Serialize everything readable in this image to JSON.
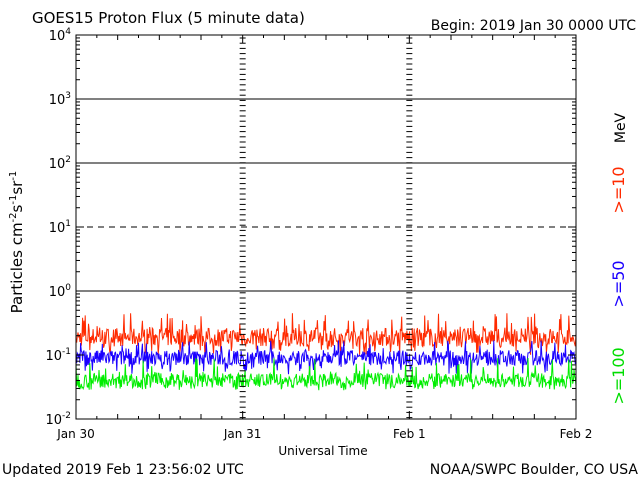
{
  "header": {
    "title": "GOES15 Proton Flux (5 minute data)",
    "begin": "Begin:  2019 Jan 30 0000 UTC"
  },
  "footer": {
    "updated": "Updated 2019 Feb  1 23:56:02 UTC",
    "credit": "NOAA/SWPC Boulder, CO USA"
  },
  "colors": {
    "ge10": "#ff2a00",
    "ge50": "#1a00ff",
    "ge100": "#00ee00",
    "axis": "#000000"
  },
  "chart_data": {
    "type": "line",
    "title": "GOES15 Proton Flux (5 minute data)",
    "xlabel": "Universal Time",
    "ylabel_parts": [
      "Particles cm",
      "-2",
      "s",
      "-1",
      "sr",
      "-1"
    ],
    "xlim": [
      "2019-01-30 00:00",
      "2019-02-02 00:00"
    ],
    "x_ticks": [
      "Jan 30",
      "Jan 31",
      "Feb 1",
      "Feb 2"
    ],
    "y_scale": "log",
    "ylim": [
      0.01,
      10000
    ],
    "y_ticks": [
      {
        "base": "10",
        "exp": "-2"
      },
      {
        "base": "10",
        "exp": "-1"
      },
      {
        "base": "10",
        "exp": "0"
      },
      {
        "base": "10",
        "exp": "1"
      },
      {
        "base": "10",
        "exp": "2"
      },
      {
        "base": "10",
        "exp": "3"
      },
      {
        "base": "10",
        "exp": "4"
      }
    ],
    "threshold_lines": [
      1,
      10,
      100,
      1000
    ],
    "dashed_threshold": 10,
    "units_label": "MeV",
    "sample_interval_minutes": 5,
    "series": [
      {
        "name": ">=10",
        "color_key": "ge10",
        "typical": 0.19,
        "range": [
          0.1,
          0.45
        ]
      },
      {
        "name": ">=50",
        "color_key": "ge50",
        "typical": 0.09,
        "range": [
          0.05,
          0.17
        ]
      },
      {
        "name": ">=100",
        "color_key": "ge100",
        "typical": 0.04,
        "range": [
          0.028,
          0.09
        ]
      }
    ]
  }
}
